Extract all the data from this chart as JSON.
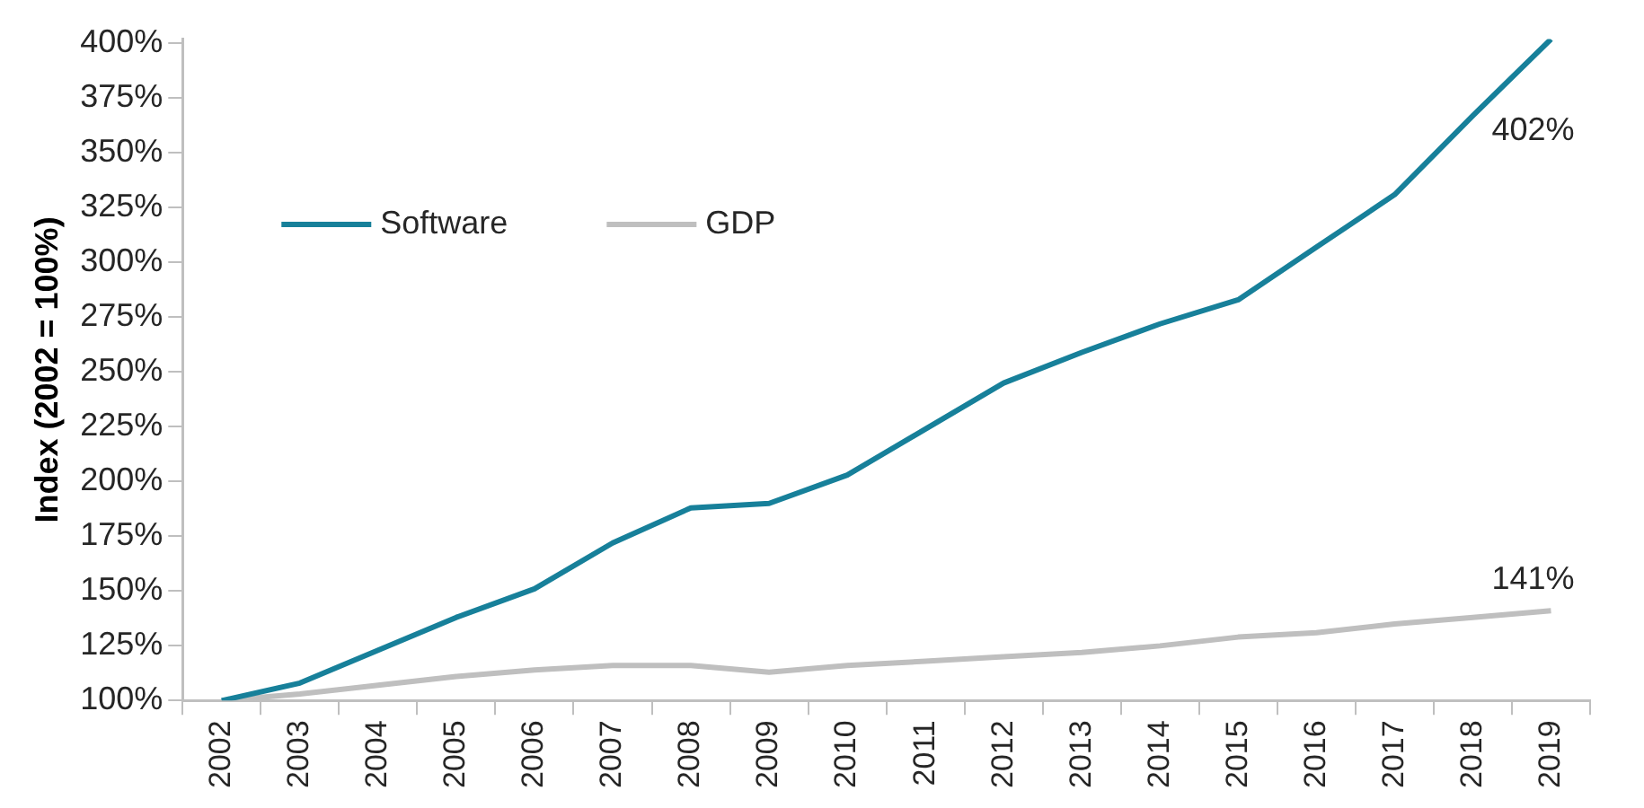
{
  "chart_data": {
    "type": "line",
    "ylabel": "Index (2002 = 100%)",
    "categories": [
      "2002",
      "2003",
      "2004",
      "2005",
      "2006",
      "2007",
      "2008",
      "2009",
      "2010",
      "2011",
      "2012",
      "2013",
      "2014",
      "2015",
      "2016",
      "2017",
      "2018",
      "2019"
    ],
    "series": [
      {
        "name": "Software",
        "color": "#17809a",
        "values": [
          100,
          108,
          123,
          138,
          151,
          172,
          188,
          190,
          203,
          224,
          245,
          259,
          272,
          283,
          307,
          331,
          367,
          402
        ]
      },
      {
        "name": "GDP",
        "color": "#bfbfbf",
        "values": [
          100,
          103,
          107,
          111,
          114,
          116,
          116,
          113,
          116,
          118,
          120,
          122,
          125,
          129,
          131,
          135,
          138,
          141
        ]
      }
    ],
    "ylim": [
      100,
      402
    ],
    "yticks": [
      {
        "value": 100,
        "label": "100%"
      },
      {
        "value": 125,
        "label": "125%"
      },
      {
        "value": 150,
        "label": "150%"
      },
      {
        "value": 175,
        "label": "175%"
      },
      {
        "value": 200,
        "label": "200%"
      },
      {
        "value": 225,
        "label": "225%"
      },
      {
        "value": 250,
        "label": "250%"
      },
      {
        "value": 275,
        "label": "275%"
      },
      {
        "value": 300,
        "label": "300%"
      },
      {
        "value": 325,
        "label": "325%"
      },
      {
        "value": 350,
        "label": "350%"
      },
      {
        "value": 375,
        "label": "375%"
      },
      {
        "value": 400,
        "label": "400%"
      }
    ],
    "annotations": [
      {
        "text": "402%",
        "x": "2019",
        "y": 402
      },
      {
        "text": "141%",
        "x": "2019",
        "y": 141
      }
    ],
    "legend": "top left",
    "grid": false,
    "marker": "none",
    "line_style": "solid"
  }
}
